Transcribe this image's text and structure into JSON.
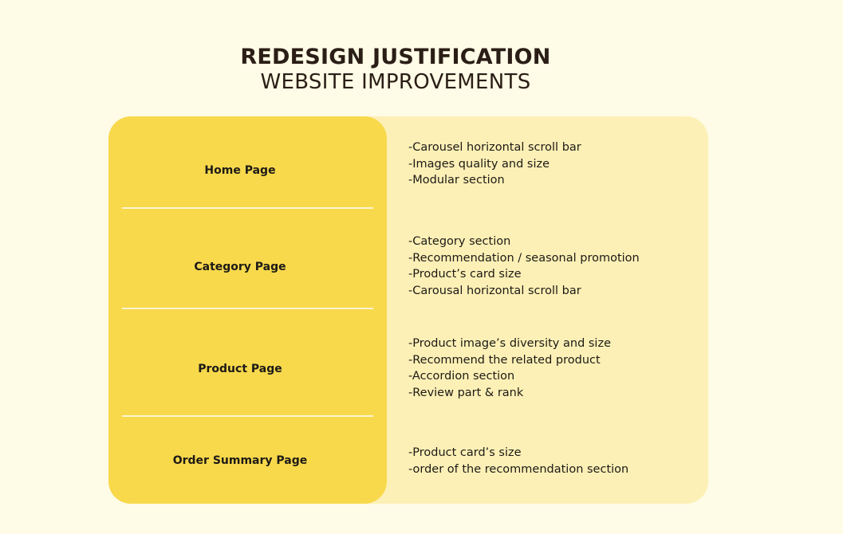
{
  "header": {
    "title": "REDESIGN JUSTIFICATION",
    "subtitle": "WEBSITE IMPROVEMENTS"
  },
  "colors": {
    "background": "#fefbe6",
    "left_panel": "#f8d94c",
    "right_panel": "#fdf0b6",
    "text": "#1d1a16"
  },
  "rows": [
    {
      "label": "Home Page",
      "items": [
        "-Carousel horizontal scroll bar",
        "-Images quality and size",
        "-Modular section"
      ]
    },
    {
      "label": "Category Page",
      "items": [
        "-Category section",
        "-Recommendation / seasonal promotion",
        "-Product’s card size",
        "-Carousal horizontal scroll bar"
      ]
    },
    {
      "label": "Product Page",
      "items": [
        "-Product image’s diversity and size",
        "-Recommend the related product",
        "-Accordion section",
        "-Review part & rank"
      ]
    },
    {
      "label": "Order Summary Page",
      "items": [
        "-Product card’s size",
        "-order of the recommendation section"
      ]
    }
  ]
}
